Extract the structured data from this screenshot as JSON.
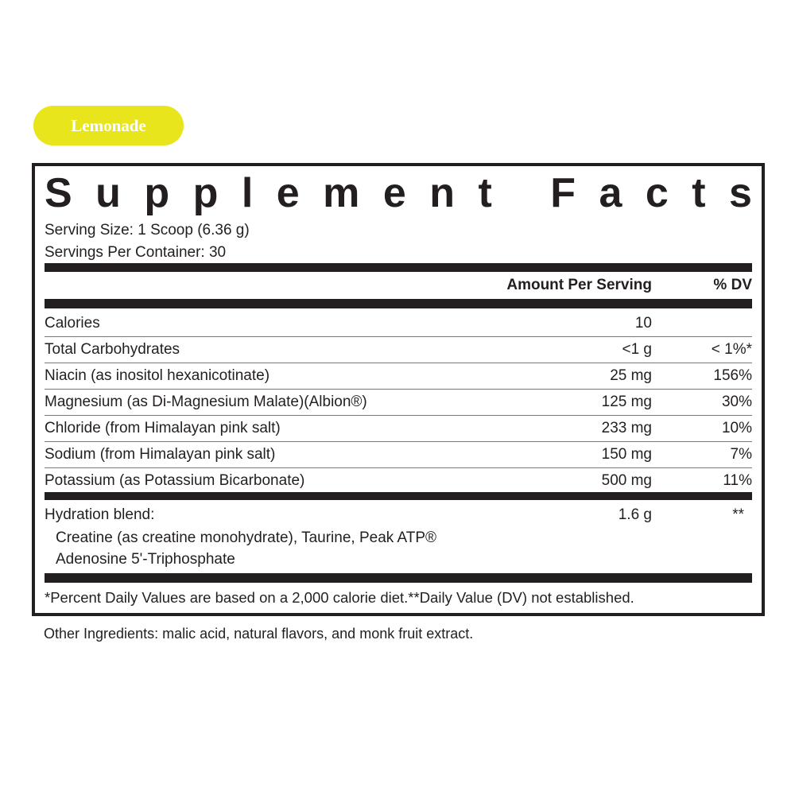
{
  "flavor": "Lemonade",
  "title": [
    "S",
    "u",
    "p",
    "p",
    "l",
    "e",
    "m",
    "e",
    "n",
    "t",
    " ",
    "F",
    "a",
    "c",
    "t",
    "s"
  ],
  "serving_size": "Serving Size: 1 Scoop (6.36 g)",
  "servings_per_container": "Servings Per Container: 30",
  "headers": {
    "amount": "Amount Per Serving",
    "dv": "% DV"
  },
  "rows": [
    {
      "name": "Calories",
      "amount": "10",
      "dv": ""
    },
    {
      "name": "Total Carbohydrates",
      "amount": "<1 g",
      "dv": "< 1%*"
    },
    {
      "name": "Niacin (as inositol hexanicotinate)",
      "amount": "25 mg",
      "dv": "156%"
    },
    {
      "name": "Magnesium (as Di-Magnesium Malate)(Albion®)",
      "amount": "125 mg",
      "dv": "30%"
    },
    {
      "name": "Chloride (from Himalayan pink salt)",
      "amount": "233 mg",
      "dv": "10%"
    },
    {
      "name": "Sodium (from Himalayan pink salt)",
      "amount": "150 mg",
      "dv": "7%"
    },
    {
      "name": "Potassium (as Potassium Bicarbonate)",
      "amount": "500 mg",
      "dv": "11%"
    }
  ],
  "blend": {
    "name": "Hydration blend:",
    "amount": "1.6 g",
    "dv": "**",
    "line1": "Creatine (as creatine monohydrate), Taurine, Peak ATP®",
    "line2": "Adenosine 5'-Triphosphate"
  },
  "footnote": "*Percent Daily Values are based on a 2,000 calorie diet.**Daily Value (DV) not established.",
  "other_ingredients": "Other Ingredients: malic acid, natural flavors, and monk fruit extract."
}
